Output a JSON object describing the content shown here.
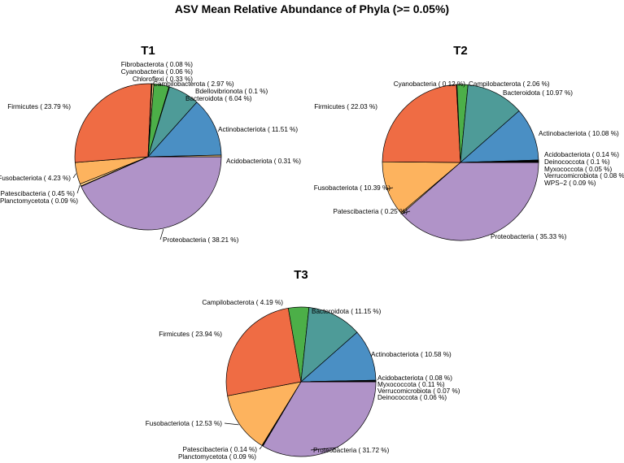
{
  "title": "ASV Mean Relative Abundance of Phyla (>= 0.05%)",
  "colors": {
    "Proteobacteria": "#b093c8",
    "Firmicutes": "#ef6c44",
    "Actinobacteriota": "#4a8fc4",
    "Bacteroidota": "#4e9b98",
    "Campilobacterota": "#4caf48",
    "Fusobacteriota": "#fdb35e",
    "minor": "#ffd28a",
    "tiny": "#2e2e2e"
  },
  "chart_data": [
    {
      "type": "pie",
      "title": "T1",
      "slices": [
        {
          "name": "Proteobacteria",
          "value": 38.21,
          "label": "Proteobacteria  ( 38.21 %)"
        },
        {
          "name": "Planctomycetota",
          "value": 0.09,
          "label": "Planctomycetota  ( 0.09 %)"
        },
        {
          "name": "Patescibacteria",
          "value": 0.45,
          "label": "Patescibacteria  ( 0.45 %)"
        },
        {
          "name": "Fusobacteriota",
          "value": 4.23,
          "label": "Fusobacteriota  ( 4.23 %)"
        },
        {
          "name": "Firmicutes",
          "value": 23.79,
          "label": "Firmicutes  ( 23.79 %)"
        },
        {
          "name": "Fibrobacterota",
          "value": 0.08,
          "label": "Fibrobacterota  ( 0.08 %)"
        },
        {
          "name": "Cyanobacteria",
          "value": 0.06,
          "label": "Cyanobacteria  ( 0.06 %)"
        },
        {
          "name": "Chloroflexi",
          "value": 0.33,
          "label": "Chloroflexi  ( 0.33 %)"
        },
        {
          "name": "Campilobacterota",
          "value": 2.97,
          "label": "Campilobacterota  ( 2.97 %)"
        },
        {
          "name": "Bdellovibrionota",
          "value": 0.1,
          "label": "Bdellovibrionota  ( 0.1 %)"
        },
        {
          "name": "Bacteroidota",
          "value": 6.04,
          "label": "Bacteroidota  ( 6.04 %)"
        },
        {
          "name": "Actinobacteriota",
          "value": 11.51,
          "label": "Actinobacteriota  ( 11.51 %)"
        },
        {
          "name": "Acidobacteriota",
          "value": 0.31,
          "label": "Acidobacteriota  ( 0.31 %)"
        }
      ]
    },
    {
      "type": "pie",
      "title": "T2",
      "slices": [
        {
          "name": "Proteobacteria",
          "value": 35.33,
          "label": "Proteobacteria  ( 35.33 %)"
        },
        {
          "name": "Patescibacteria",
          "value": 0.25,
          "label": "Patescibacteria  ( 0.25 %)"
        },
        {
          "name": "Fusobacteriota",
          "value": 10.39,
          "label": "Fusobacteriota  ( 10.39 %)"
        },
        {
          "name": "Firmicutes",
          "value": 22.03,
          "label": "Firmicutes  ( 22.03 %)"
        },
        {
          "name": "Cyanobacteria",
          "value": 0.12,
          "label": "Cyanobacteria  ( 0.12 %)"
        },
        {
          "name": "Campilobacterota",
          "value": 2.06,
          "label": "Campilobacterota  ( 2.06 %)"
        },
        {
          "name": "Bacteroidota",
          "value": 10.97,
          "label": "Bacteroidota  ( 10.97 %)"
        },
        {
          "name": "Actinobacteriota",
          "value": 10.08,
          "label": "Actinobacteriota  ( 10.08 %)"
        },
        {
          "name": "Acidobacteriota",
          "value": 0.14,
          "label": "Acidobacteriota  ( 0.14 %)"
        },
        {
          "name": "Deinococcota",
          "value": 0.1,
          "label": "Deinococcota  ( 0.1 %)"
        },
        {
          "name": "Myxococcota",
          "value": 0.05,
          "label": "Myxococcota  ( 0.05 %)"
        },
        {
          "name": "Verrucomicrobiota",
          "value": 0.08,
          "label": "Verrucomicrobiota  ( 0.08 %)"
        },
        {
          "name": "WPS-2",
          "value": 0.09,
          "label": "WPS−2  ( 0.09 %)"
        }
      ]
    },
    {
      "type": "pie",
      "title": "T3",
      "slices": [
        {
          "name": "Proteobacteria",
          "value": 31.72,
          "label": "Proteobacteria  ( 31.72 %)"
        },
        {
          "name": "Planctomycetota",
          "value": 0.09,
          "label": "Planctomycetota  ( 0.09 %)"
        },
        {
          "name": "Patescibacteria",
          "value": 0.14,
          "label": "Patescibacteria  ( 0.14 %)"
        },
        {
          "name": "Fusobacteriota",
          "value": 12.53,
          "label": "Fusobacteriota  ( 12.53 %)"
        },
        {
          "name": "Firmicutes",
          "value": 23.94,
          "label": "Firmicutes  ( 23.94 %)"
        },
        {
          "name": "Campilobacterota",
          "value": 4.19,
          "label": "Campilobacterota  ( 4.19 %)"
        },
        {
          "name": "Bacteroidota",
          "value": 11.15,
          "label": "Bacteroidota  ( 11.15 %)"
        },
        {
          "name": "Actinobacteriota",
          "value": 10.58,
          "label": "Actinobacteriota  ( 10.58 %)"
        },
        {
          "name": "Acidobacteriota",
          "value": 0.08,
          "label": "Acidobacteriota  ( 0.08 %)"
        },
        {
          "name": "Myxococcota",
          "value": 0.11,
          "label": "Myxococcota  ( 0.11 %)"
        },
        {
          "name": "Verrucomicrobiota",
          "value": 0.07,
          "label": "Verrucomicrobiota  ( 0.07 %)"
        },
        {
          "name": "Deinococcota",
          "value": 0.06,
          "label": "Deinococcota  ( 0.06 %)"
        }
      ]
    }
  ]
}
